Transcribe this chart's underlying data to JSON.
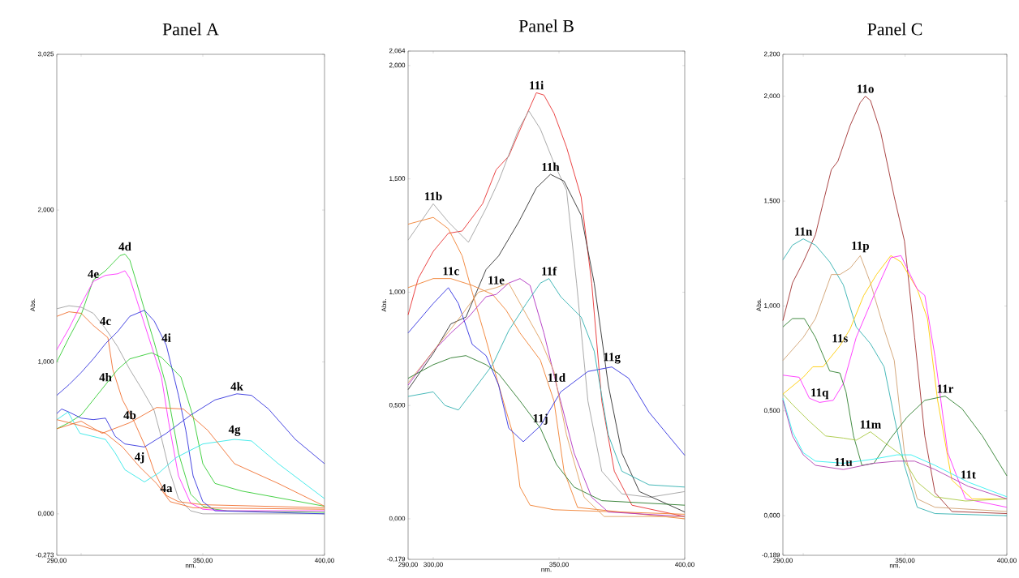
{
  "chart_data": [
    {
      "type": "line",
      "title": "Panel A",
      "xlabel": "nm.",
      "ylabel": "Abs.",
      "xlim": [
        290,
        400
      ],
      "ylim": [
        -0.273,
        3.025
      ],
      "xticks": [
        {
          "value": 290,
          "label": "290,00"
        },
        {
          "value": 300,
          "label": null
        },
        {
          "value": 350,
          "label": "350,00"
        },
        {
          "value": 400,
          "label": "400,00"
        }
      ],
      "yticks": [
        {
          "value": -0.273,
          "label": "-0,273"
        },
        {
          "value": 0,
          "label": "0,000"
        },
        {
          "value": 1,
          "label": "1,000"
        },
        {
          "value": 2,
          "label": "2,000"
        },
        {
          "value": 3.025,
          "label": "3,025"
        }
      ],
      "series": [
        {
          "color": "#33cc33",
          "x": [
            290,
            295,
            300,
            305,
            310,
            313,
            316,
            318,
            320,
            323,
            327,
            330,
            335,
            340,
            345,
            350,
            355,
            360,
            400
          ],
          "values": [
            1.0,
            1.16,
            1.31,
            1.54,
            1.6,
            1.65,
            1.7,
            1.71,
            1.67,
            1.51,
            1.29,
            1.13,
            0.84,
            0.4,
            0.13,
            0.05,
            0.03,
            0.02,
            0.01
          ]
        },
        {
          "color": "#ff33ff",
          "x": [
            290,
            295,
            300,
            305,
            310,
            315,
            318,
            320,
            323,
            327,
            330,
            333,
            336,
            340,
            345,
            350,
            360,
            400
          ],
          "values": [
            1.08,
            1.22,
            1.38,
            1.53,
            1.57,
            1.58,
            1.6,
            1.55,
            1.4,
            1.2,
            1.05,
            0.9,
            0.6,
            0.25,
            0.07,
            0.03,
            0.02,
            0.02
          ]
        },
        {
          "color": "#a0a0a0",
          "x": [
            290,
            295,
            300,
            305,
            310,
            315,
            320,
            325,
            330,
            333,
            336,
            340,
            345,
            350,
            400
          ],
          "values": [
            1.35,
            1.37,
            1.36,
            1.32,
            1.22,
            1.1,
            0.95,
            0.82,
            0.68,
            0.5,
            0.3,
            0.1,
            0.02,
            0.0,
            0.0
          ]
        },
        {
          "color": "#f07030",
          "x": [
            290,
            295,
            300,
            305,
            311,
            313,
            317,
            322,
            327,
            330,
            335,
            340,
            350,
            400
          ],
          "values": [
            1.3,
            1.33,
            1.32,
            1.24,
            1.16,
            0.95,
            0.75,
            0.6,
            0.42,
            0.28,
            0.12,
            0.08,
            0.06,
            0.04
          ]
        },
        {
          "color": "#3333dd",
          "x": [
            290,
            295,
            300,
            305,
            310,
            315,
            320,
            326,
            330,
            335,
            340,
            343,
            346,
            350,
            355,
            400
          ],
          "values": [
            0.78,
            0.85,
            0.93,
            1.02,
            1.12,
            1.2,
            1.3,
            1.34,
            1.27,
            1.11,
            0.78,
            0.55,
            0.25,
            0.08,
            0.02,
            0.0
          ]
        },
        {
          "color": "#33cc33",
          "x": [
            290,
            295,
            300,
            305,
            310,
            315,
            320,
            329,
            333,
            341,
            346,
            350,
            355,
            366,
            400
          ],
          "values": [
            0.56,
            0.6,
            0.65,
            0.75,
            0.85,
            0.95,
            1.02,
            1.06,
            1.03,
            0.9,
            0.64,
            0.33,
            0.2,
            0.15,
            0.05
          ]
        },
        {
          "color": "#3333dd",
          "x": [
            290,
            292,
            295,
            300,
            305,
            310,
            314,
            318,
            326,
            335,
            345,
            355,
            364,
            370,
            377,
            388,
            400
          ],
          "values": [
            0.66,
            0.69,
            0.67,
            0.63,
            0.62,
            0.63,
            0.51,
            0.46,
            0.44,
            0.53,
            0.65,
            0.75,
            0.79,
            0.78,
            0.69,
            0.49,
            0.33
          ]
        },
        {
          "color": "#33e8e8",
          "x": [
            290,
            294.6,
            299.5,
            310,
            314,
            318,
            326,
            332,
            339,
            350,
            363,
            370,
            381,
            400
          ],
          "values": [
            0.62,
            0.67,
            0.53,
            0.49,
            0.4,
            0.29,
            0.21,
            0.27,
            0.37,
            0.46,
            0.49,
            0.48,
            0.33,
            0.1
          ]
        },
        {
          "color": "#f07030",
          "x": [
            290,
            300,
            308.6,
            320,
            331,
            342,
            352,
            363,
            381,
            400
          ],
          "values": [
            0.56,
            0.61,
            0.53,
            0.6,
            0.7,
            0.69,
            0.55,
            0.33,
            0.2,
            0.05
          ]
        },
        {
          "color": "#f07030",
          "x": [
            290,
            300,
            310,
            317,
            324,
            331,
            336.6,
            346,
            400
          ],
          "values": [
            0.62,
            0.58,
            0.53,
            0.44,
            0.31,
            0.2,
            0.08,
            0.04,
            0.03
          ]
        }
      ],
      "annotations": [
        {
          "text": "4d",
          "x": 318,
          "y": 1.71
        },
        {
          "text": "4e",
          "x": 305,
          "y": 1.53
        },
        {
          "text": "4c",
          "x": 310,
          "y": 1.22
        },
        {
          "text": "4h",
          "x": 310,
          "y": 0.85
        },
        {
          "text": "4i",
          "x": 335,
          "y": 1.11
        },
        {
          "text": "4k",
          "x": 364,
          "y": 0.79
        },
        {
          "text": "4b",
          "x": 320,
          "y": 0.6
        },
        {
          "text": "4g",
          "x": 363,
          "y": 0.49
        },
        {
          "text": "4j",
          "x": 324,
          "y": 0.31
        },
        {
          "text": "4a",
          "x": 335,
          "y": 0.12
        }
      ]
    },
    {
      "type": "line",
      "title": "Panel B",
      "xlabel": "nm.",
      "ylabel": "Abs.",
      "xlim": [
        290,
        400
      ],
      "ylim": [
        -0.179,
        2.064
      ],
      "xticks": [
        {
          "value": 290,
          "label": "290,00"
        },
        {
          "value": 300,
          "label": "300,00"
        },
        {
          "value": 350,
          "label": "350,00"
        },
        {
          "value": 400,
          "label": "400,00"
        }
      ],
      "yticks": [
        {
          "value": -0.179,
          "label": "-0,179"
        },
        {
          "value": 0,
          "label": "0,000"
        },
        {
          "value": 0.5,
          "label": "0,500"
        },
        {
          "value": 1,
          "label": "1,000"
        },
        {
          "value": 1.5,
          "label": "1,500"
        },
        {
          "value": 2,
          "label": "2,000"
        },
        {
          "value": 2.064,
          "label": "2,064"
        }
      ],
      "series": [
        {
          "color": "#e83030",
          "x": [
            290,
            294,
            300,
            306,
            311.5,
            319.6,
            325,
            330,
            335.8,
            341,
            344,
            348,
            353,
            358.8,
            363,
            367,
            372,
            379,
            400
          ],
          "values": [
            0.9,
            1.06,
            1.18,
            1.26,
            1.27,
            1.39,
            1.54,
            1.6,
            1.75,
            1.88,
            1.87,
            1.79,
            1.64,
            1.42,
            1.04,
            0.52,
            0.21,
            0.06,
            0.01
          ]
        },
        {
          "color": "#a0a0a0",
          "x": [
            290,
            300,
            306,
            314,
            321,
            326,
            334,
            338,
            342.6,
            348,
            353,
            357,
            361.5,
            367,
            375,
            386,
            400
          ],
          "values": [
            1.23,
            1.39,
            1.31,
            1.22,
            1.37,
            1.49,
            1.72,
            1.8,
            1.72,
            1.57,
            1.45,
            1.04,
            0.52,
            0.21,
            0.11,
            0.095,
            0.12
          ]
        },
        {
          "color": "#303030",
          "x": [
            290,
            300,
            307,
            313,
            321,
            326,
            334,
            341,
            346.6,
            352,
            358.8,
            364,
            369.6,
            375,
            382,
            400
          ],
          "values": [
            0.57,
            0.73,
            0.86,
            0.89,
            1.1,
            1.16,
            1.31,
            1.46,
            1.52,
            1.49,
            1.34,
            1.04,
            0.59,
            0.29,
            0.12,
            0.03
          ]
        },
        {
          "color": "#f08030",
          "x": [
            290,
            300,
            306,
            311.5,
            315.5,
            321,
            326,
            331.8,
            334.5,
            338.5,
            348,
            400
          ],
          "values": [
            1.3,
            1.33,
            1.28,
            1.16,
            1.0,
            0.79,
            0.59,
            0.37,
            0.14,
            0.06,
            0.04,
            0.02
          ]
        },
        {
          "color": "#f08030",
          "x": [
            290,
            300,
            307,
            315.5,
            323.6,
            329,
            334.5,
            342.6,
            348,
            352,
            357.4,
            400
          ],
          "values": [
            1.02,
            1.06,
            1.06,
            1.03,
            0.99,
            0.92,
            0.82,
            0.7,
            0.52,
            0.21,
            0.05,
            0.0
          ]
        },
        {
          "color": "#3030e0",
          "x": [
            290,
            300,
            306,
            310,
            315.5,
            321,
            326,
            330,
            335.8,
            342.6,
            350.7,
            361.5,
            371,
            377.7,
            385.8,
            400
          ],
          "values": [
            0.82,
            0.95,
            1.02,
            0.95,
            0.77,
            0.72,
            0.59,
            0.4,
            0.34,
            0.41,
            0.56,
            0.65,
            0.67,
            0.62,
            0.47,
            0.28
          ]
        },
        {
          "color": "#b030c0",
          "x": [
            290,
            300,
            307,
            314,
            321,
            325,
            330,
            334.5,
            338.5,
            344,
            349,
            356,
            363,
            369.6,
            400
          ],
          "values": [
            0.59,
            0.74,
            0.82,
            0.89,
            0.98,
            0.99,
            1.04,
            1.06,
            1.03,
            0.82,
            0.59,
            0.29,
            0.095,
            0.03,
            0.01
          ]
        },
        {
          "color": "#e0a060",
          "x": [
            290,
            300,
            310,
            318,
            325,
            330,
            342.6,
            348,
            353,
            360,
            368,
            400
          ],
          "values": [
            0.6,
            0.74,
            0.88,
            1.0,
            1.02,
            1.04,
            0.79,
            0.65,
            0.37,
            0.095,
            0.01,
            0.01
          ]
        },
        {
          "color": "#30b0b0",
          "x": [
            290,
            300,
            304.7,
            310,
            315.5,
            323.6,
            330,
            337,
            342.6,
            346,
            350.7,
            358.8,
            364,
            369.6,
            375,
            385.8,
            400
          ],
          "values": [
            0.54,
            0.56,
            0.5,
            0.48,
            0.56,
            0.68,
            0.83,
            0.95,
            1.04,
            1.06,
            0.98,
            0.89,
            0.74,
            0.37,
            0.21,
            0.15,
            0.14
          ]
        },
        {
          "color": "#2a7a2a",
          "x": [
            290,
            300,
            307,
            313,
            321,
            326,
            334.5,
            342.6,
            349,
            356,
            367,
            400
          ],
          "values": [
            0.62,
            0.68,
            0.71,
            0.72,
            0.68,
            0.64,
            0.52,
            0.4,
            0.24,
            0.14,
            0.08,
            0.06
          ]
        }
      ],
      "annotations": [
        {
          "text": "11i",
          "x": 341,
          "y": 1.88
        },
        {
          "text": "11h",
          "x": 346.6,
          "y": 1.52
        },
        {
          "text": "11b",
          "x": 300,
          "y": 1.39
        },
        {
          "text": "11c",
          "x": 307,
          "y": 1.06
        },
        {
          "text": "11e",
          "x": 325,
          "y": 1.02
        },
        {
          "text": "11f",
          "x": 346,
          "y": 1.06
        },
        {
          "text": "11d",
          "x": 349,
          "y": 0.59
        },
        {
          "text": "11g",
          "x": 371,
          "y": 0.67
        },
        {
          "text": "11j",
          "x": 342.6,
          "y": 0.4
        }
      ]
    },
    {
      "type": "line",
      "title": "Panel C",
      "xlabel": "nm.",
      "ylabel": "Abs.",
      "xlim": [
        290,
        400
      ],
      "ylim": [
        -0.189,
        2.2
      ],
      "xticks": [
        {
          "value": 290,
          "label": "290,00"
        },
        {
          "value": 300,
          "label": null
        },
        {
          "value": 350,
          "label": "350,00"
        },
        {
          "value": 400,
          "label": "400,00"
        }
      ],
      "yticks": [
        {
          "value": -0.189,
          "label": "-0,189"
        },
        {
          "value": 0,
          "label": "0,000"
        },
        {
          "value": 0.5,
          "label": "0,500"
        },
        {
          "value": 1,
          "label": "1,000"
        },
        {
          "value": 1.5,
          "label": "1,500"
        },
        {
          "value": 2,
          "label": "2,000"
        },
        {
          "value": 2.2,
          "label": "2,200"
        }
      ],
      "series": [
        {
          "color": "#a03030",
          "x": [
            290,
            294.7,
            300,
            306,
            309.7,
            313.8,
            317,
            323,
            328,
            330.5,
            333,
            338,
            344.7,
            349.7,
            354.7,
            359.7,
            364.7,
            373,
            400
          ],
          "values": [
            0.93,
            1.11,
            1.21,
            1.34,
            1.49,
            1.65,
            1.69,
            1.86,
            1.97,
            2.0,
            1.98,
            1.83,
            1.52,
            1.31,
            0.85,
            0.38,
            0.11,
            0.02,
            0.01
          ]
        },
        {
          "color": "#30b0b0",
          "x": [
            290,
            294.7,
            300,
            306,
            313,
            319.7,
            326,
            333,
            339.7,
            344.7,
            349.7,
            356,
            364.7,
            400
          ],
          "values": [
            1.22,
            1.29,
            1.32,
            1.29,
            1.21,
            1.1,
            0.9,
            0.82,
            0.71,
            0.47,
            0.24,
            0.04,
            0.01,
            0.0
          ]
        },
        {
          "color": "#d0a070",
          "x": [
            290,
            300,
            306,
            313.8,
            318,
            323,
            328,
            333,
            339.7,
            344.7,
            349.7,
            356,
            364.7,
            400
          ],
          "values": [
            0.74,
            0.85,
            0.94,
            1.15,
            1.15,
            1.18,
            1.24,
            1.11,
            0.89,
            0.74,
            0.3,
            0.08,
            0.04,
            0.02
          ]
        },
        {
          "color": "#ffcc00",
          "x": [
            290,
            300,
            304.7,
            309.7,
            318,
            323,
            329.7,
            336,
            343,
            348,
            356,
            361,
            366,
            373,
            383,
            400
          ],
          "values": [
            0.58,
            0.66,
            0.71,
            0.71,
            0.81,
            0.89,
            1.05,
            1.15,
            1.24,
            1.21,
            1.08,
            0.94,
            0.55,
            0.17,
            0.08,
            0.08
          ]
        },
        {
          "color": "#ff30ff",
          "x": [
            290,
            298,
            303,
            308,
            314.7,
            319.7,
            326,
            334.7,
            343,
            348,
            356,
            359.7,
            364.7,
            371,
            379.7,
            400
          ],
          "values": [
            0.67,
            0.66,
            0.56,
            0.54,
            0.55,
            0.63,
            0.85,
            1.05,
            1.23,
            1.24,
            1.08,
            1.05,
            0.76,
            0.3,
            0.08,
            0.04
          ]
        },
        {
          "color": "#2f7f2f",
          "x": [
            290,
            294.7,
            300.5,
            306,
            313,
            318,
            321,
            324.7,
            328.8,
            334.7,
            343,
            351,
            359.7,
            369.7,
            378,
            388,
            400
          ],
          "values": [
            0.9,
            0.94,
            0.94,
            0.85,
            0.69,
            0.68,
            0.59,
            0.38,
            0.24,
            0.25,
            0.37,
            0.47,
            0.55,
            0.57,
            0.51,
            0.38,
            0.19
          ]
        },
        {
          "color": "#a8c840",
          "x": [
            290,
            294.7,
            303,
            311,
            319.7,
            326,
            333,
            339.7,
            348,
            356,
            364.7,
            379.7,
            400
          ],
          "values": [
            0.58,
            0.53,
            0.45,
            0.38,
            0.37,
            0.36,
            0.4,
            0.35,
            0.29,
            0.16,
            0.09,
            0.07,
            0.08
          ]
        },
        {
          "color": "#30f0f0",
          "x": [
            290,
            294.7,
            300,
            306,
            319.7,
            334.7,
            346,
            353,
            364.7,
            381,
            400
          ],
          "values": [
            0.56,
            0.4,
            0.3,
            0.26,
            0.25,
            0.27,
            0.29,
            0.29,
            0.24,
            0.16,
            0.09
          ]
        },
        {
          "color": "#b040b0",
          "x": [
            290,
            294.7,
            300,
            306,
            319.7,
            334.7,
            346,
            354.7,
            364.7,
            381,
            400
          ],
          "values": [
            0.55,
            0.38,
            0.29,
            0.24,
            0.22,
            0.25,
            0.26,
            0.26,
            0.22,
            0.14,
            0.08
          ]
        }
      ],
      "annotations": [
        {
          "text": "11o",
          "x": 330.5,
          "y": 2.0
        },
        {
          "text": "11n",
          "x": 300,
          "y": 1.32
        },
        {
          "text": "11p",
          "x": 328,
          "y": 1.24
        },
        {
          "text": "11s",
          "x": 318,
          "y": 0.81
        },
        {
          "text": "11q",
          "x": 308,
          "y": 0.54
        },
        {
          "text": "11m",
          "x": 333,
          "y": 0.4
        },
        {
          "text": "11r",
          "x": 369.7,
          "y": 0.57
        },
        {
          "text": "11t",
          "x": 381,
          "y": 0.16
        },
        {
          "text": "11u",
          "x": 319.7,
          "y": 0.22
        }
      ]
    }
  ]
}
